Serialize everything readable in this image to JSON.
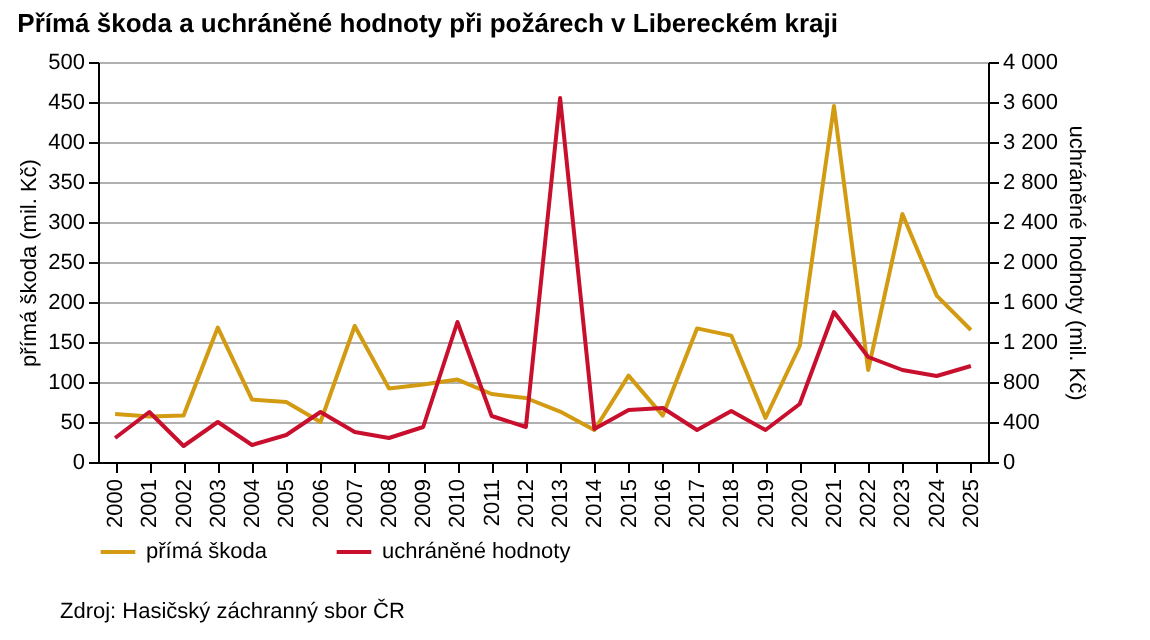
{
  "chart_data": {
    "type": "line",
    "title": "Přímá škoda a uchráněné hodnoty při požárech v Libereckém kraji",
    "ylabel": "přímá škoda (mil. Kč)",
    "y2label": "uchráněné hodnoty (mil. Kč)",
    "annotations": [
      "Zdroj: Hasičský záchranný sbor ČR"
    ],
    "categories": [
      "2000",
      "2001",
      "2002",
      "2003",
      "2004",
      "2005",
      "2006",
      "2007",
      "2008",
      "2009",
      "2010",
      "2011",
      "2012",
      "2013",
      "2014",
      "2015",
      "2016",
      "2017",
      "2018",
      "2019",
      "2020",
      "2021",
      "2022",
      "2023",
      "2024",
      "2025"
    ],
    "series": [
      {
        "name": "přímá škoda",
        "color": "#d39b12",
        "values": [
          60,
          57,
          58,
          168,
          78,
          75,
          50,
          170,
          92,
          97,
          103,
          85,
          80,
          63,
          40,
          108,
          58,
          167,
          158,
          55,
          145,
          445,
          115,
          310,
          208,
          165
        ]
      },
      {
        "name": "uchráněné hodnoty",
        "color": "#c8102e",
        "axis": "y2",
        "values": [
          240,
          500,
          160,
          400,
          170,
          270,
          500,
          300,
          240,
          350,
          1400,
          460,
          350,
          3640,
          330,
          520,
          540,
          320,
          510,
          320,
          580,
          1500,
          1050,
          920,
          860,
          960
        ]
      }
    ],
    "ylim": [
      0,
      500
    ],
    "yticks": [
      0,
      50,
      100,
      150,
      200,
      250,
      300,
      350,
      400,
      450,
      500
    ],
    "y2lim": [
      0,
      4000
    ],
    "y2ticks": [
      0,
      {
        "value": 400,
        "label": "400"
      },
      {
        "value": 800,
        "label": "800"
      },
      {
        "value": 1200,
        "label": "1 200"
      },
      {
        "value": 1600,
        "label": "1 600"
      },
      {
        "value": 2000,
        "label": "2 000"
      },
      {
        "value": 2400,
        "label": "2 400"
      },
      {
        "value": 2800,
        "label": "2 800"
      },
      {
        "value": 3200,
        "label": "3 200"
      },
      {
        "value": 3600,
        "label": "3 600"
      },
      {
        "value": 4000,
        "label": "4 000"
      }
    ],
    "grid": "y",
    "legend": "bottom",
    "marker": "none",
    "line_style": "solid"
  }
}
